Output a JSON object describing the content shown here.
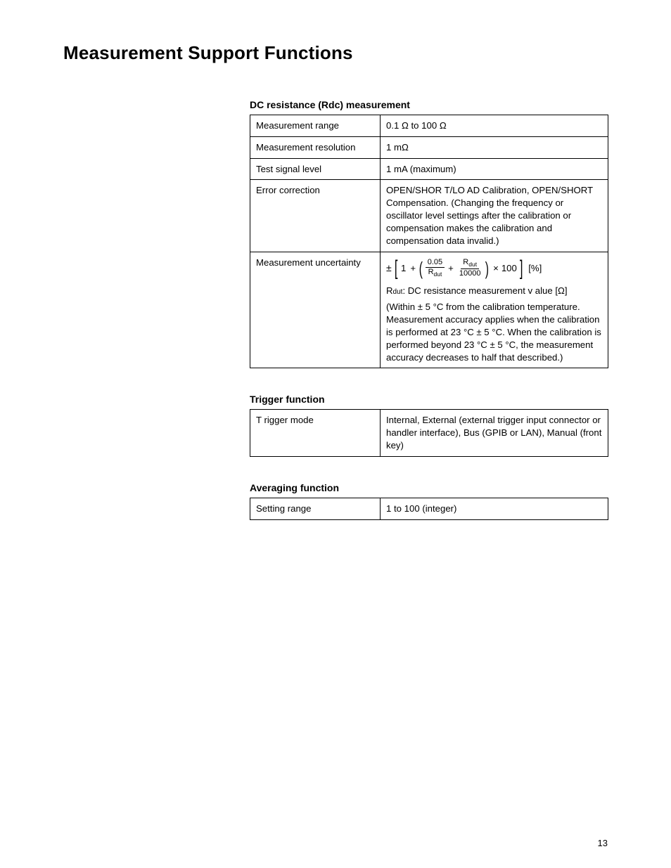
{
  "page": {
    "title": "Measurement Support Functions",
    "number": "13"
  },
  "dc_resistance": {
    "heading": "DC resistance (Rdc) measurement",
    "rows": {
      "range_label": "Measurement range",
      "range_value": "0.1 Ω to 100 Ω",
      "resolution_label": "Measurement resolution",
      "resolution_value": "1 mΩ",
      "signal_label": "Test signal level",
      "signal_value": "1 mA (maximum)",
      "error_label": "Error correction",
      "error_value": "OPEN/SHOR T/LO AD Calibration, OPEN/SHORT Compensation. (Changing the frequency or oscillator level settings after the calibration or compensation makes the calibration and compensation data invalid.)",
      "uncertainty_label": "Measurement uncertainty",
      "formula": {
        "plusminus": "±",
        "one": "1",
        "plus1": "+",
        "frac1_num": "0.05",
        "frac1_den_base": "R",
        "frac1_den_sub": "dut",
        "plus2": "+",
        "frac2_num_base": "R",
        "frac2_num_sub": "dut",
        "frac2_den": "10000",
        "times": "×",
        "hundred": "100",
        "unit": "[%]"
      },
      "uncertainty_text_1_prefix": "R",
      "uncertainty_text_1_sub": "dut",
      "uncertainty_text_1_rest": ": DC resistance measurement v alue [Ω]",
      "uncertainty_text_2": "(Within ± 5 °C from the calibration temperature. Measurement accuracy applies when the calibration is performed at 23 °C ± 5 °C. When the calibration is performed  beyond 23 °C ± 5 °C,  the measurement accuracy decreases to half that described.)"
    }
  },
  "trigger": {
    "heading": "Trigger function",
    "mode_label": "T rigger mode",
    "mode_value": "Internal, External (external trigger input connector or handler interface), Bus (GPIB or LAN), Manual (front key)"
  },
  "averaging": {
    "heading": "Averaging function",
    "range_label": "Setting range",
    "range_value": "1 to 100 (integer)"
  }
}
